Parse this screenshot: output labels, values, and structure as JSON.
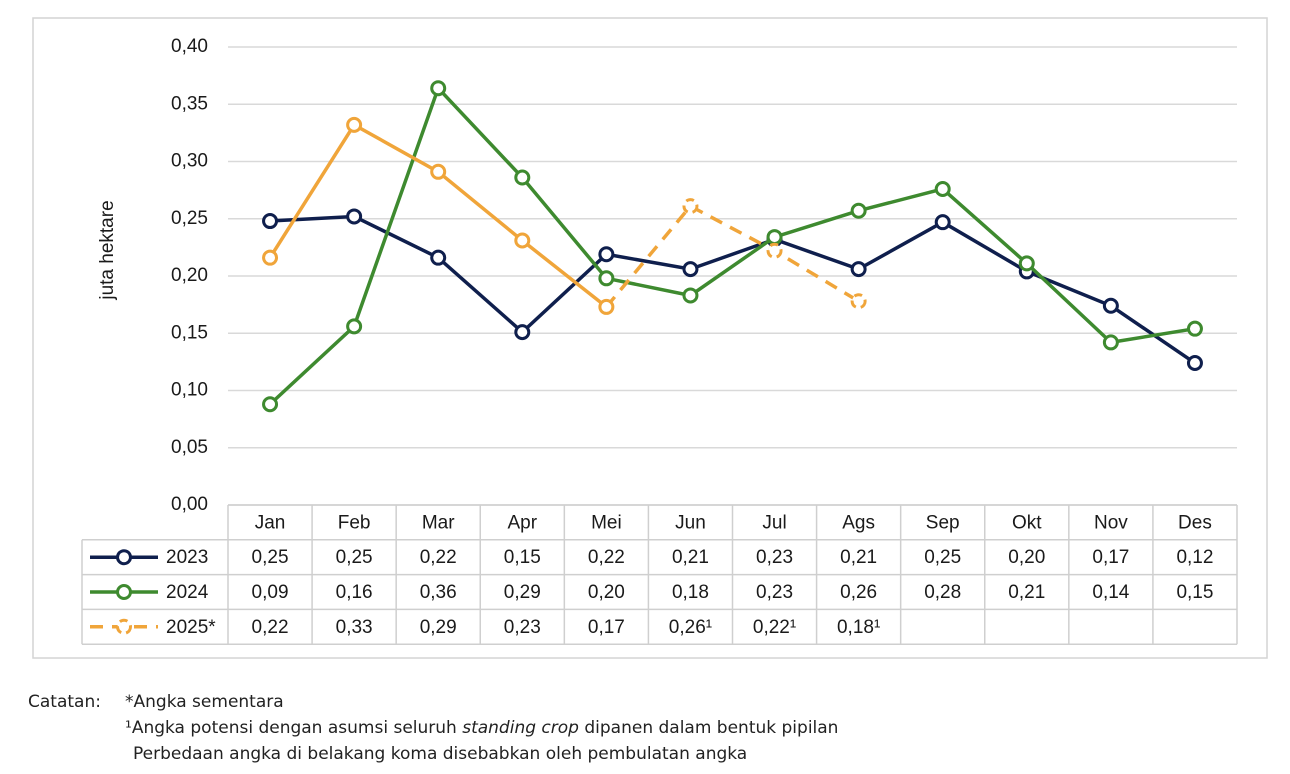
{
  "chart_data": {
    "type": "line",
    "y_label": "juta hektare",
    "categories": [
      "Jan",
      "Feb",
      "Mar",
      "Apr",
      "Mei",
      "Jun",
      "Jul",
      "Ags",
      "Sep",
      "Okt",
      "Nov",
      "Des"
    ],
    "ylim": [
      0,
      0.4
    ],
    "yticks": [
      {
        "value": 0,
        "label": "0,00"
      },
      {
        "value": 0.05,
        "label": "0,05"
      },
      {
        "value": 0.1,
        "label": "0,10"
      },
      {
        "value": 0.15,
        "label": "0,15"
      },
      {
        "value": 0.2,
        "label": "0,20"
      },
      {
        "value": 0.25,
        "label": "0,25"
      },
      {
        "value": 0.3,
        "label": "0,30"
      },
      {
        "value": 0.35,
        "label": "0,35"
      },
      {
        "value": 0.4,
        "label": "0,40"
      }
    ],
    "grid": true,
    "series": [
      {
        "name": "2023",
        "color": "#0f1f4d",
        "values": [
          0.248,
          0.252,
          0.216,
          0.151,
          0.219,
          0.206,
          0.232,
          0.206,
          0.247,
          0.204,
          0.174,
          0.124
        ],
        "value_labels": [
          "0,25",
          "0,25",
          "0,22",
          "0,15",
          "0,22",
          "0,21",
          "0,23",
          "0,21",
          "0,25",
          "0,20",
          "0,17",
          "0,12"
        ],
        "dashed_points": [
          false,
          false,
          false,
          false,
          false,
          false,
          false,
          false,
          false,
          false,
          false,
          false
        ]
      },
      {
        "name": "2024",
        "color": "#3e8a2f",
        "values": [
          0.088,
          0.156,
          0.364,
          0.286,
          0.198,
          0.183,
          0.234,
          0.257,
          0.276,
          0.211,
          0.142,
          0.154
        ],
        "value_labels": [
          "0,09",
          "0,16",
          "0,36",
          "0,29",
          "0,20",
          "0,18",
          "0,23",
          "0,26",
          "0,28",
          "0,21",
          "0,14",
          "0,15"
        ],
        "dashed_points": [
          false,
          false,
          false,
          false,
          false,
          false,
          false,
          false,
          false,
          false,
          false,
          false
        ]
      },
      {
        "name": "2025*",
        "color": "#f0a53a",
        "values": [
          0.216,
          0.332,
          0.291,
          0.231,
          0.173,
          0.261,
          0.222,
          0.178,
          null,
          null,
          null,
          null
        ],
        "value_labels": [
          "0,22",
          "0,33",
          "0,29",
          "0,23",
          "0,17",
          "0,26¹",
          "0,22¹",
          "0,18¹",
          null,
          null,
          null,
          null
        ],
        "dashed_points": [
          false,
          false,
          false,
          false,
          false,
          true,
          true,
          true,
          null,
          null,
          null,
          null
        ]
      }
    ]
  },
  "notes": {
    "label": "Catatan:",
    "line1": "*Angka sementara",
    "line2_a": "¹Angka potensi dengan asumsi seluruh ",
    "line2_b": "standing crop",
    "line2_c": " dipanen dalam bentuk pipilan",
    "line3": "Perbedaan angka di belakang koma disebabkan oleh pembulatan angka"
  }
}
